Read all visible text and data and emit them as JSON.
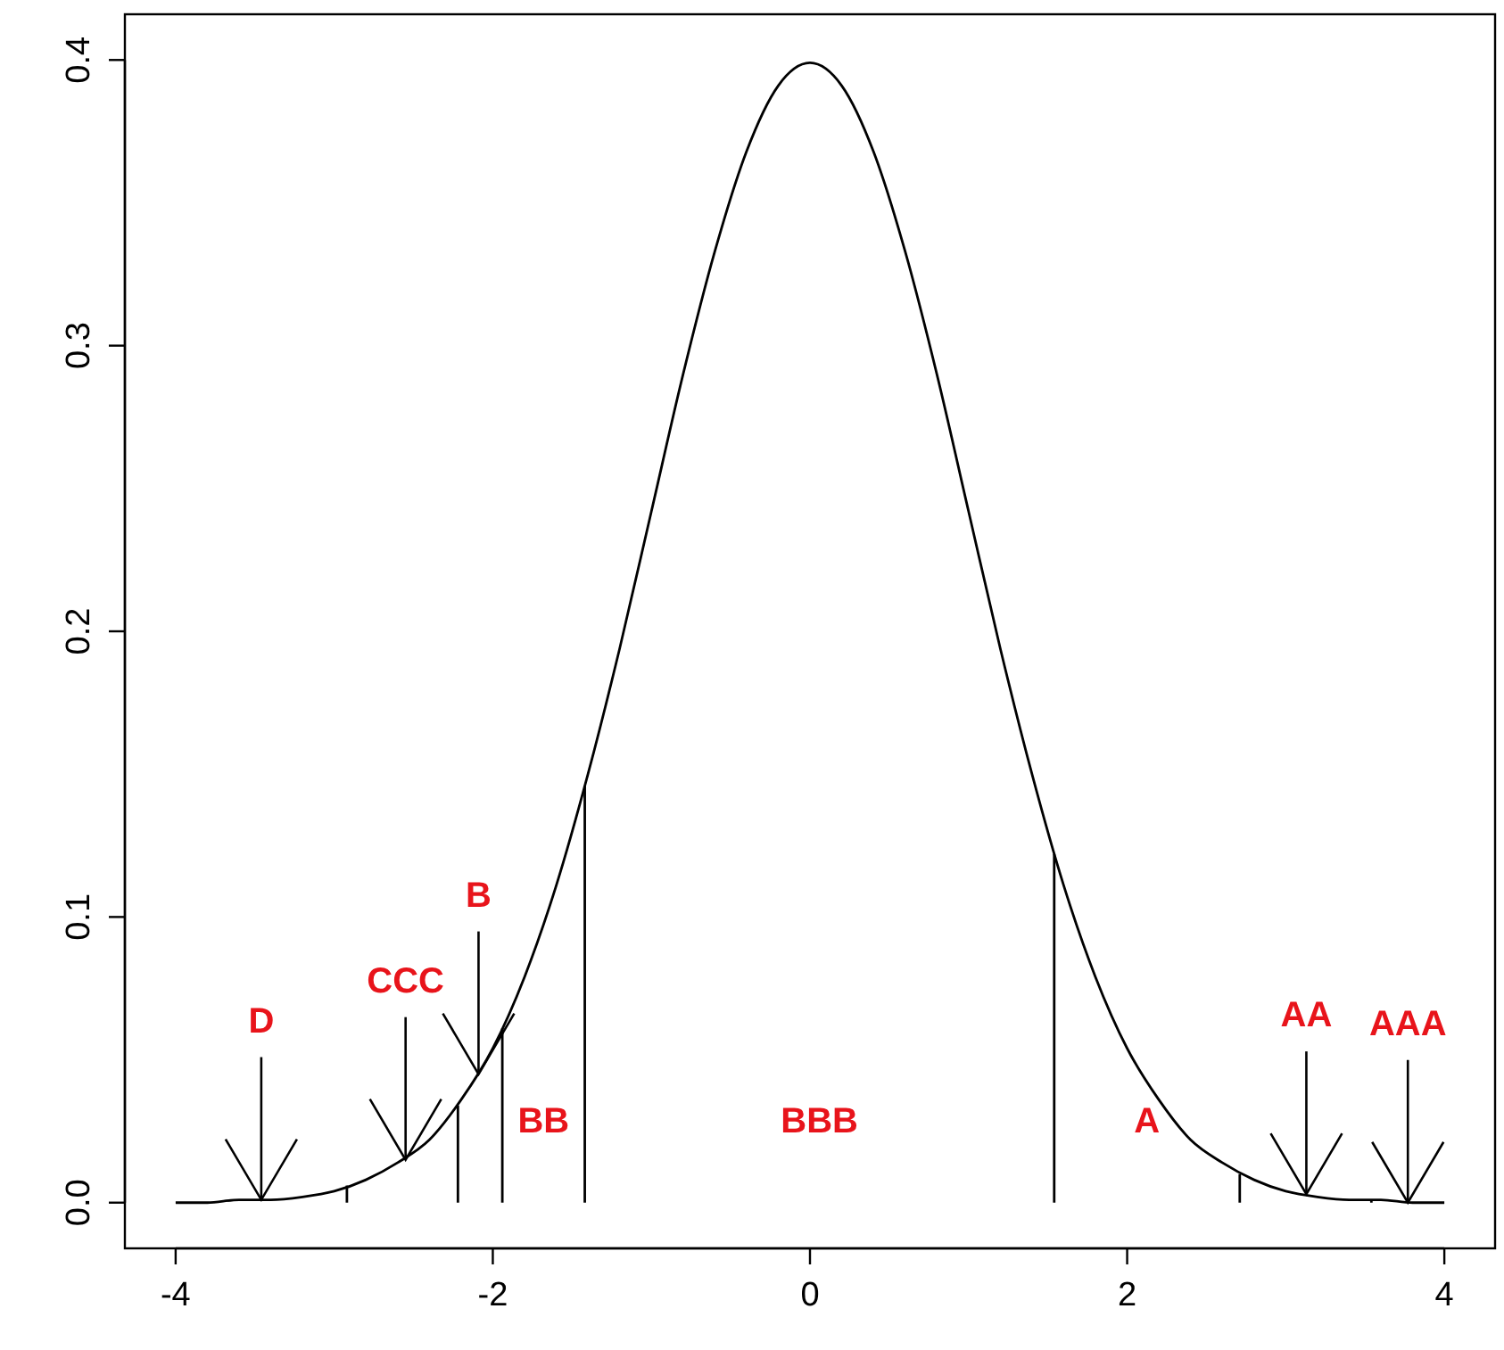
{
  "chart_data": {
    "type": "line",
    "xlim": [
      -4.32,
      4.32
    ],
    "ylim": [
      -0.016,
      0.416
    ],
    "xticks": [
      -4,
      -2,
      0,
      2,
      4
    ],
    "yticks": [
      {
        "value": 0,
        "label": "0.0"
      },
      {
        "value": 0.1,
        "label": "0.1"
      },
      {
        "value": 0.2,
        "label": "0.2"
      },
      {
        "value": 0.3,
        "label": "0.3"
      },
      {
        "value": 0.4,
        "label": "0.4"
      }
    ],
    "grid": false,
    "marker": "none",
    "line_style": "solid",
    "series": [
      {
        "color": "#000000",
        "x": [
          -4,
          -3.8,
          -3.6,
          -3.4,
          -3.2,
          -3,
          -2.8,
          -2.6,
          -2.4,
          -2.2,
          -2,
          -1.8,
          -1.6,
          -1.4,
          -1.2,
          -1,
          -0.8,
          -0.6,
          -0.4,
          -0.2,
          0,
          0.2,
          0.4,
          0.6,
          0.8,
          1,
          1.2,
          1.4,
          1.6,
          1.8,
          2,
          2.2,
          2.4,
          2.6,
          2.8,
          3,
          3.2,
          3.4,
          3.6,
          3.8,
          4
        ],
        "values": [
          0.0,
          0.0,
          0.001,
          0.001,
          0.002,
          0.004,
          0.008,
          0.014,
          0.022,
          0.036,
          0.054,
          0.079,
          0.111,
          0.15,
          0.194,
          0.242,
          0.29,
          0.333,
          0.368,
          0.391,
          0.399,
          0.391,
          0.368,
          0.333,
          0.29,
          0.242,
          0.194,
          0.15,
          0.111,
          0.079,
          0.054,
          0.036,
          0.022,
          0.014,
          0.008,
          0.004,
          0.002,
          0.001,
          0.001,
          0.0,
          0.0
        ]
      },
      {
        "type": "bar",
        "color": "#000000",
        "x": [
          -2.92,
          -2.22,
          -1.94,
          -1.42,
          1.54,
          2.71,
          3.54
        ],
        "values": [
          0.006,
          0.034,
          0.061,
          0.146,
          0.122,
          0.01,
          0.001
        ]
      }
    ],
    "annotations": [
      {
        "text": "D",
        "x": -3.46,
        "y": 0.001
      },
      {
        "text": "CCC",
        "x": -2.55,
        "y": 0.015
      },
      {
        "text": "B",
        "x": -2.09,
        "y": 0.045
      },
      "BB",
      "BBB",
      "A",
      {
        "text": "AA",
        "x": 3.13,
        "y": 0.003
      },
      {
        "text": "AAA",
        "x": 3.77,
        "y": 0.0
      }
    ]
  }
}
